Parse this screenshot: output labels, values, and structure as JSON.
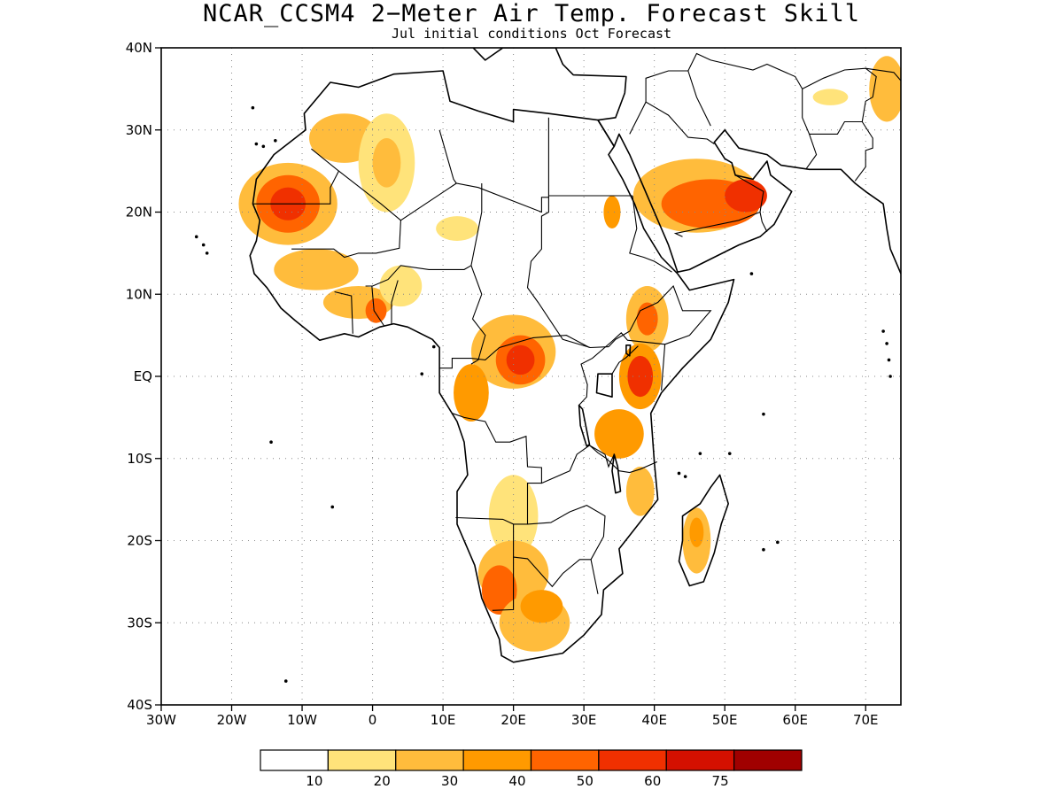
{
  "title": "NCAR_CCSM4 2−Meter Air Temp. Forecast Skill",
  "subtitle": "Jul initial conditions  Oct Forecast",
  "map": {
    "lon_range": [
      -30,
      75
    ],
    "lat_range": [
      -40,
      40
    ],
    "grid": true,
    "lon_ticks": [
      {
        "v": -30,
        "label": "30W"
      },
      {
        "v": -20,
        "label": "20W"
      },
      {
        "v": -10,
        "label": "10W"
      },
      {
        "v": 0,
        "label": "0"
      },
      {
        "v": 10,
        "label": "10E"
      },
      {
        "v": 20,
        "label": "20E"
      },
      {
        "v": 30,
        "label": "30E"
      },
      {
        "v": 40,
        "label": "40E"
      },
      {
        "v": 50,
        "label": "50E"
      },
      {
        "v": 60,
        "label": "60E"
      },
      {
        "v": 70,
        "label": "70E"
      }
    ],
    "lat_ticks": [
      {
        "v": 40,
        "label": "40N"
      },
      {
        "v": 30,
        "label": "30N"
      },
      {
        "v": 20,
        "label": "20N"
      },
      {
        "v": 10,
        "label": "10N"
      },
      {
        "v": 0,
        "label": "EQ"
      },
      {
        "v": -10,
        "label": "10S"
      },
      {
        "v": -20,
        "label": "20S"
      },
      {
        "v": -30,
        "label": "30S"
      },
      {
        "v": -40,
        "label": "40S"
      }
    ]
  },
  "colorbar": {
    "colors": [
      "#ffffff",
      "#ffe37a",
      "#ffbc3c",
      "#ff9a00",
      "#ff6400",
      "#f03000",
      "#d41000",
      "#a00000"
    ],
    "labels": [
      "10",
      "20",
      "30",
      "40",
      "50",
      "60",
      "75"
    ]
  },
  "skill_regions": [
    {
      "lon": -12,
      "lat": 21,
      "rx": 7,
      "ry": 5,
      "level": 2
    },
    {
      "lon": -12,
      "lat": 21,
      "rx": 4.5,
      "ry": 3.5,
      "level": 4
    },
    {
      "lon": -12,
      "lat": 21,
      "rx": 2.5,
      "ry": 2,
      "level": 5
    },
    {
      "lon": -4,
      "lat": 29,
      "rx": 5,
      "ry": 3,
      "level": 2
    },
    {
      "lon": 2,
      "lat": 26,
      "rx": 4,
      "ry": 6,
      "level": 1
    },
    {
      "lon": 2,
      "lat": 26,
      "rx": 2,
      "ry": 3,
      "level": 2
    },
    {
      "lon": -8,
      "lat": 13,
      "rx": 6,
      "ry": 2.5,
      "level": 2
    },
    {
      "lon": -2,
      "lat": 9,
      "rx": 5,
      "ry": 2,
      "level": 2
    },
    {
      "lon": 0.5,
      "lat": 8,
      "rx": 1.5,
      "ry": 1.5,
      "level": 4
    },
    {
      "lon": 12,
      "lat": 18,
      "rx": 3,
      "ry": 1.5,
      "level": 1
    },
    {
      "lon": 4,
      "lat": 11,
      "rx": 3,
      "ry": 2.5,
      "level": 1
    },
    {
      "lon": 20,
      "lat": 3,
      "rx": 6,
      "ry": 4.5,
      "level": 2
    },
    {
      "lon": 21,
      "lat": 2,
      "rx": 3.5,
      "ry": 3,
      "level": 4
    },
    {
      "lon": 21,
      "lat": 2,
      "rx": 2,
      "ry": 1.8,
      "level": 5
    },
    {
      "lon": 14,
      "lat": -2,
      "rx": 2.5,
      "ry": 3.5,
      "level": 3
    },
    {
      "lon": 39,
      "lat": 7,
      "rx": 3,
      "ry": 4,
      "level": 2
    },
    {
      "lon": 39,
      "lat": 7,
      "rx": 1.5,
      "ry": 2,
      "level": 4
    },
    {
      "lon": 38,
      "lat": 0,
      "rx": 3,
      "ry": 4,
      "level": 3
    },
    {
      "lon": 38,
      "lat": 0,
      "rx": 1.8,
      "ry": 2.5,
      "level": 5
    },
    {
      "lon": 35,
      "lat": -7,
      "rx": 3.5,
      "ry": 3,
      "level": 3
    },
    {
      "lon": 38,
      "lat": -14,
      "rx": 2,
      "ry": 3,
      "level": 2
    },
    {
      "lon": 20,
      "lat": -17,
      "rx": 3.5,
      "ry": 5,
      "level": 1
    },
    {
      "lon": 20,
      "lat": -24,
      "rx": 5,
      "ry": 4,
      "level": 2
    },
    {
      "lon": 18,
      "lat": -26,
      "rx": 2.5,
      "ry": 3,
      "level": 4
    },
    {
      "lon": 23,
      "lat": -30,
      "rx": 5,
      "ry": 3.5,
      "level": 2
    },
    {
      "lon": 24,
      "lat": -28,
      "rx": 3,
      "ry": 2,
      "level": 3
    },
    {
      "lon": 46,
      "lat": -20,
      "rx": 2,
      "ry": 4,
      "level": 2
    },
    {
      "lon": 46,
      "lat": -19,
      "rx": 1,
      "ry": 1.8,
      "level": 3
    },
    {
      "lon": 46,
      "lat": 22,
      "rx": 9,
      "ry": 4.5,
      "level": 2
    },
    {
      "lon": 48,
      "lat": 21,
      "rx": 7,
      "ry": 3,
      "level": 4
    },
    {
      "lon": 53,
      "lat": 22,
      "rx": 3,
      "ry": 2,
      "level": 5
    },
    {
      "lon": 34,
      "lat": 20,
      "rx": 1.2,
      "ry": 2,
      "level": 3
    },
    {
      "lon": 65,
      "lat": 34,
      "rx": 2.5,
      "ry": 1,
      "level": 1
    },
    {
      "lon": 73,
      "lat": 35,
      "rx": 2.5,
      "ry": 4,
      "level": 2
    }
  ]
}
